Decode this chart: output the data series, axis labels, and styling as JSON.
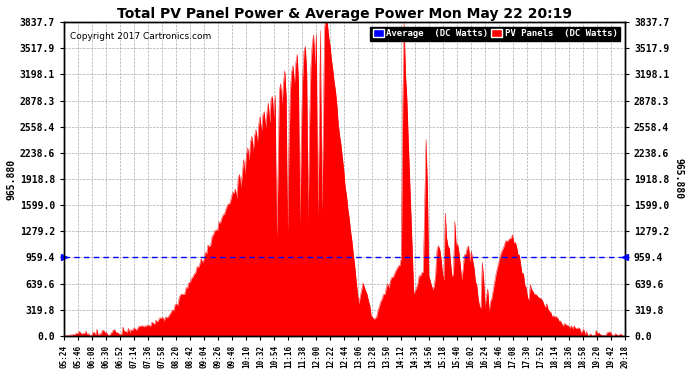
{
  "title": "Total PV Panel Power & Average Power Mon May 22 20:19",
  "copyright": "Copyright 2017 Cartronics.com",
  "average_value": 965.88,
  "y_ticks": [
    0.0,
    319.8,
    639.6,
    959.4,
    1279.2,
    1599.0,
    1918.8,
    2238.6,
    2558.4,
    2878.3,
    3198.1,
    3517.9,
    3837.7
  ],
  "ylim": [
    0,
    3837.7
  ],
  "bg_color": "#ffffff",
  "fill_color": "#ff0000",
  "line_color": "#ff0000",
  "avg_line_color": "#0000ff",
  "grid_color": "#888888",
  "title_color": "#000000",
  "left_ylabel": "965.880",
  "right_ylabel": "965.880",
  "legend_avg_label": "Average  (DC Watts)",
  "legend_pv_label": "PV Panels  (DC Watts)",
  "legend_avg_bg": "#0000ff",
  "legend_pv_bg": "#ff0000",
  "x_tick_labels": [
    "05:24",
    "05:46",
    "06:08",
    "06:30",
    "06:52",
    "07:14",
    "07:36",
    "07:58",
    "08:20",
    "08:42",
    "09:04",
    "09:26",
    "09:48",
    "10:10",
    "10:32",
    "10:54",
    "11:16",
    "11:38",
    "12:00",
    "12:22",
    "12:44",
    "13:06",
    "13:28",
    "13:50",
    "14:12",
    "14:34",
    "14:56",
    "15:18",
    "15:40",
    "16:02",
    "16:24",
    "16:46",
    "17:08",
    "17:30",
    "17:52",
    "18:14",
    "18:36",
    "18:58",
    "19:20",
    "19:42",
    "20:18"
  ],
  "num_points": 410
}
